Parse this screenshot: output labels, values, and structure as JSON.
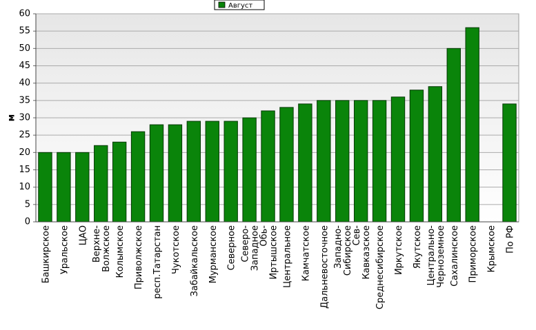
{
  "chart_data": {
    "type": "bar",
    "legend": "top",
    "ylabel": "м",
    "series": [
      {
        "name": "Август",
        "color": "#0a840a",
        "values": [
          20,
          20,
          20,
          22,
          23,
          26,
          28,
          28,
          29,
          29,
          29,
          30,
          32,
          33,
          34,
          35,
          35,
          35,
          35,
          36,
          38,
          39,
          50,
          56,
          null,
          34
        ]
      }
    ],
    "categories": [
      "Башкирское",
      "Уральское",
      "ЦАО",
      "Верхне-\nВолжское",
      "Колымское",
      "Приволжское",
      "респ.Татарстан",
      "Чукотское",
      "Забайкальское",
      "Мурманское",
      "Северное",
      "Северо-\nЗападное",
      "Обь-\nИртышское",
      "Центральное",
      "Камчатское",
      "Дальневосточное",
      "Западно-\nСибирское",
      "Сев-\nКавказское",
      "Среднесибирское",
      "Иркутское",
      "Якутское",
      "Центрально-\nЧерноземное",
      "Сахалинское",
      "Приморское",
      "Крымское",
      "По РФ"
    ],
    "ylim": [
      0,
      60
    ],
    "yticks": [
      0,
      5,
      10,
      15,
      20,
      25,
      30,
      35,
      40,
      45,
      50,
      55,
      60
    ],
    "grid": true
  }
}
